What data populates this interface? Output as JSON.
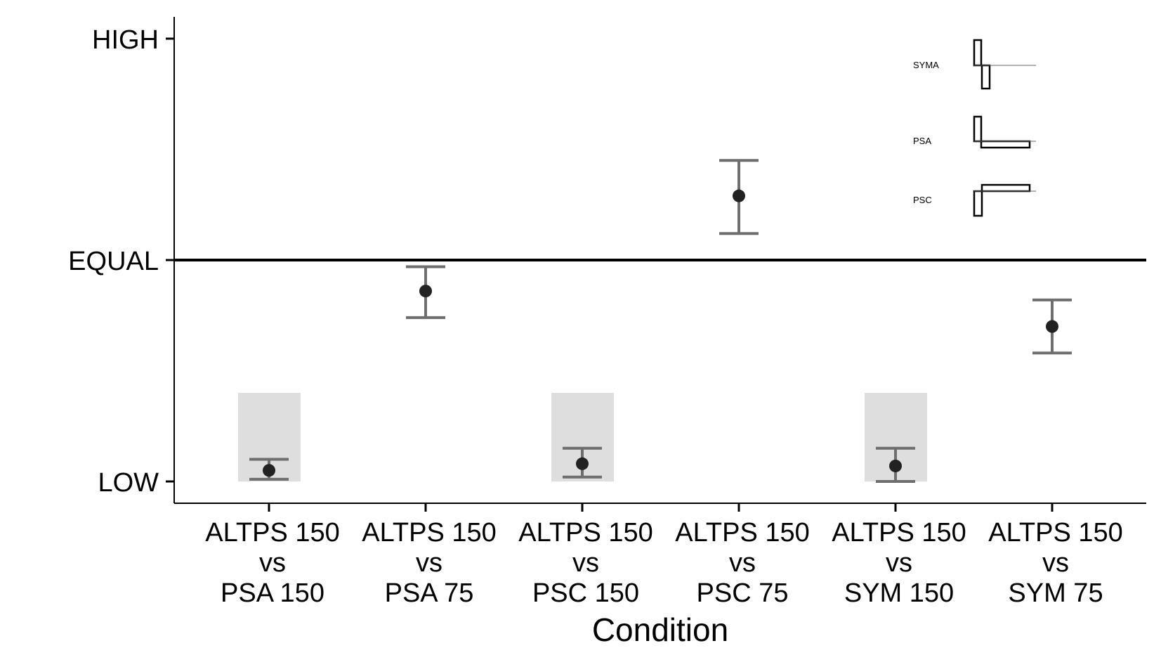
{
  "chart_data": {
    "type": "scatter",
    "xlabel": "Condition",
    "ylabel": "",
    "ylim": [
      -0.1,
      2.1
    ],
    "y_ticks": [
      {
        "value": 0,
        "label": "LOW"
      },
      {
        "value": 1,
        "label": "EQUAL"
      },
      {
        "value": 2,
        "label": "HIGH"
      }
    ],
    "reference_line": 1,
    "categories": [
      [
        "ALTPS 150",
        "vs",
        "PSA 150"
      ],
      [
        "ALTPS 150",
        "vs",
        "PSA 75"
      ],
      [
        "ALTPS 150",
        "vs",
        "PSC 150"
      ],
      [
        "ALTPS 150",
        "vs",
        "PSC 75"
      ],
      [
        "ALTPS 150",
        "vs",
        "SYM 150"
      ],
      [
        "ALTPS 150",
        "vs",
        "SYM 75"
      ]
    ],
    "points": [
      {
        "y": 0.05,
        "lower": 0.01,
        "upper": 0.1,
        "shaded": true
      },
      {
        "y": 0.86,
        "lower": 0.74,
        "upper": 0.97,
        "shaded": false
      },
      {
        "y": 0.08,
        "lower": 0.02,
        "upper": 0.15,
        "shaded": true
      },
      {
        "y": 1.29,
        "lower": 1.12,
        "upper": 1.45,
        "shaded": false
      },
      {
        "y": 0.07,
        "lower": 0.0,
        "upper": 0.15,
        "shaded": true
      },
      {
        "y": 0.7,
        "lower": 0.58,
        "upper": 0.82,
        "shaded": false
      }
    ],
    "shade_range": [
      0,
      0.4
    ],
    "legend": [
      {
        "label": "SYMA",
        "waveform": "syma-icon"
      },
      {
        "label": "PSA",
        "waveform": "psa-icon"
      },
      {
        "label": "PSC",
        "waveform": "psc-icon"
      }
    ],
    "legend_position": "top-right",
    "grid": false
  }
}
